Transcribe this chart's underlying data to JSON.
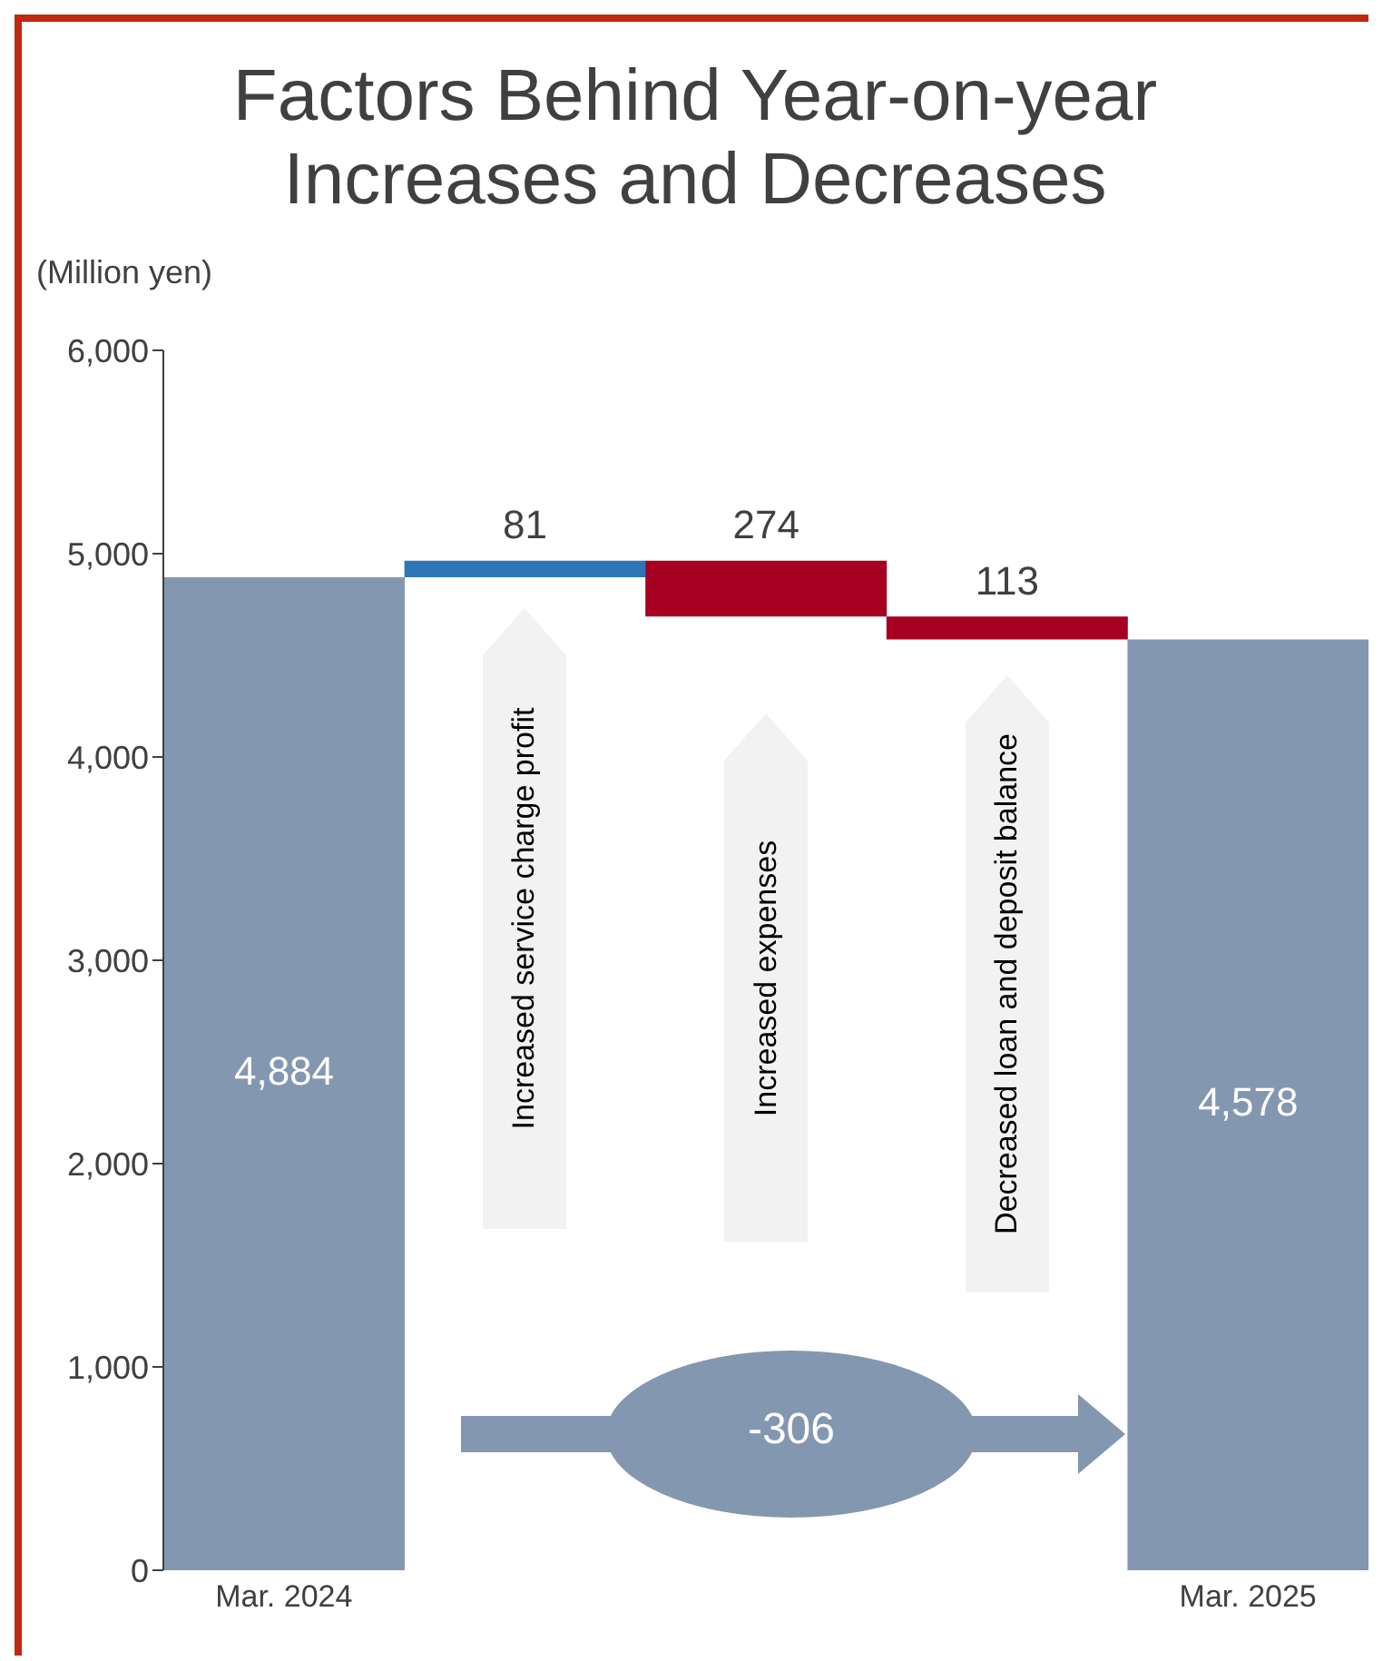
{
  "chart_data": {
    "type": "bar",
    "title": "Factors Behind Year-on-year Increases and Decreases",
    "ylabel": "(Million yen)",
    "categories": [
      "Mar. 2024",
      null,
      null,
      null,
      "Mar. 2025"
    ],
    "values": [
      4884,
      81,
      -274,
      -113,
      4578
    ],
    "base": [
      0,
      4884,
      4965,
      4691,
      0
    ],
    "colors": [
      "#8497b0",
      "#2e75b6",
      "#a50021",
      "#a50021",
      "#8497b0"
    ],
    "value_labels": [
      "4,884",
      "81",
      "274",
      "113",
      "4,578"
    ],
    "ylim": [
      0,
      6000
    ],
    "yticks": [
      0,
      {
        "value": 1000,
        "label": "1,000"
      },
      {
        "value": 2000,
        "label": "2,000"
      },
      {
        "value": 3000,
        "label": "3,000"
      },
      {
        "value": 4000,
        "label": "4,000"
      },
      {
        "value": 5000,
        "label": "5,000"
      },
      {
        "value": 6000,
        "label": "6,000"
      }
    ],
    "annotations": [
      "Increased service charge profit",
      "Increased expenses",
      "Decreased loan and deposit balance",
      "-306"
    ]
  }
}
